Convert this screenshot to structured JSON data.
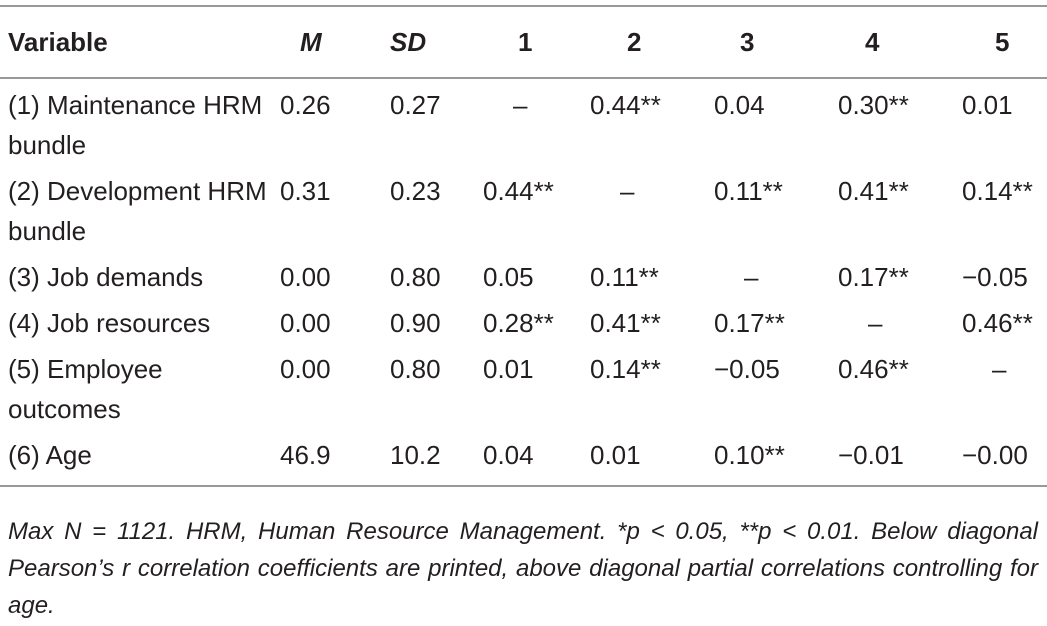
{
  "table": {
    "header": [
      "Variable",
      "M",
      "SD",
      "1",
      "2",
      "3",
      "4",
      "5"
    ],
    "rows": [
      [
        "(1) Maintenance HRM bundle",
        "0.26",
        "0.27",
        "–",
        "0.44**",
        "0.04",
        "0.30**",
        "0.01"
      ],
      [
        "(2) Development HRM bundle",
        "0.31",
        "0.23",
        "0.44**",
        "–",
        "0.11**",
        "0.41**",
        "0.14**"
      ],
      [
        "(3) Job demands",
        "0.00",
        "0.80",
        "0.05",
        "0.11**",
        "–",
        "0.17**",
        "−0.05"
      ],
      [
        "(4) Job resources",
        "0.00",
        "0.90",
        "0.28**",
        "0.41**",
        "0.17**",
        "–",
        "0.46**"
      ],
      [
        "(5) Employee outcomes",
        "0.00",
        "0.80",
        "0.01",
        "0.14**",
        "−0.05",
        "0.46**",
        "–"
      ],
      [
        "(6) Age",
        "46.9",
        "10.2",
        "0.04",
        "0.01",
        "0.10**",
        "−0.01",
        "−0.00"
      ]
    ],
    "note": "Max N = 1121. HRM, Human Resource Management. *p < 0.05, **p < 0.01. Below diagonal Pearson’s r correlation coefficients are printed, above diagonal partial correlations controlling for age."
  }
}
